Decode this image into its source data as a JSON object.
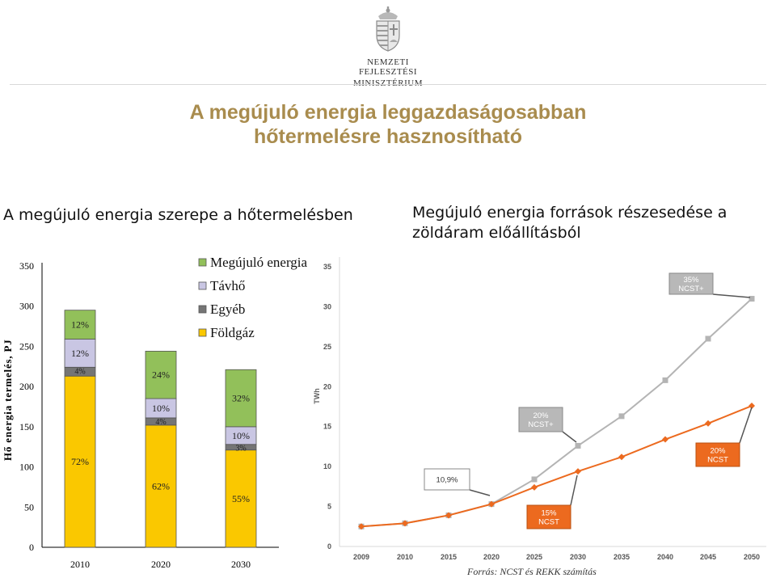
{
  "header": {
    "ministry_line1": "Nemzeti Fejlesztési",
    "ministry_line2": "Minisztérium",
    "title_line1": "A megújuló energia leggazdaságosabban",
    "title_line2": "hőtermelésre hasznosítható"
  },
  "left_subtitle": "A megújuló energia szerepe a hőtermelésben",
  "right_subtitle": "Megújuló energia források részesedése a zöldáram előállításból",
  "source_note": "Forrás: NCST és REKK számítás",
  "colors": {
    "title": "#a98c4e",
    "renewable": "#92c05a",
    "district_heat": "#c9c6e3",
    "other": "#757575",
    "natural_gas": "#fac800",
    "orange_series": "#ec6a1f",
    "grey_series": "#b4b4b4"
  },
  "chart_data": [
    {
      "type": "bar",
      "stacked": true,
      "categories": [
        "2010",
        "2020",
        "2030"
      ],
      "ylabel": "Hő energia termelés, PJ",
      "ylim": [
        0,
        350
      ],
      "yticks": [
        "0",
        "50",
        "100",
        "150",
        "200",
        "250",
        "300",
        "350"
      ],
      "legend_position": "top-right",
      "series": [
        {
          "name": "Földgáz",
          "values": [
            213,
            152,
            121
          ],
          "labels": [
            "72%",
            "62%",
            "55%"
          ]
        },
        {
          "name": "Egyéb",
          "values": [
            11,
            9,
            7
          ],
          "labels": [
            "4%",
            "4%",
            "3%"
          ]
        },
        {
          "name": "Távhő",
          "values": [
            35,
            24,
            22
          ],
          "labels": [
            "12%",
            "10%",
            "10%"
          ]
        },
        {
          "name": "Megújuló energia",
          "values": [
            36,
            59,
            71
          ],
          "labels": [
            "12%",
            "24%",
            "32%"
          ]
        }
      ]
    },
    {
      "type": "line",
      "ylabel": "TWh",
      "ylim": [
        0,
        35
      ],
      "yticks": [
        "0",
        "5",
        "10",
        "15",
        "20",
        "25",
        "30",
        "35"
      ],
      "x": [
        "2009",
        "2010",
        "2015",
        "2020",
        "2025",
        "2030",
        "2035",
        "2040",
        "2045",
        "2050"
      ],
      "series": [
        {
          "values": [
            2.5,
            2.9,
            3.9,
            5.3,
            8.4,
            12.6,
            16.3,
            20.8,
            26.0,
            31.0
          ]
        },
        {
          "values": [
            2.5,
            2.9,
            3.9,
            5.3,
            7.4,
            9.4,
            11.2,
            13.4,
            15.4,
            17.6
          ]
        }
      ],
      "callouts": [
        {
          "text": [
            "35%",
            "NCST+"
          ],
          "style": "grey"
        },
        {
          "text": [
            "20%",
            "NCST+"
          ],
          "style": "grey"
        },
        {
          "text": [
            "10,9%"
          ],
          "style": "white"
        },
        {
          "text": [
            "20%",
            "NCST"
          ],
          "style": "orange"
        },
        {
          "text": [
            "15%",
            "NCST"
          ],
          "style": "orange"
        }
      ]
    }
  ]
}
